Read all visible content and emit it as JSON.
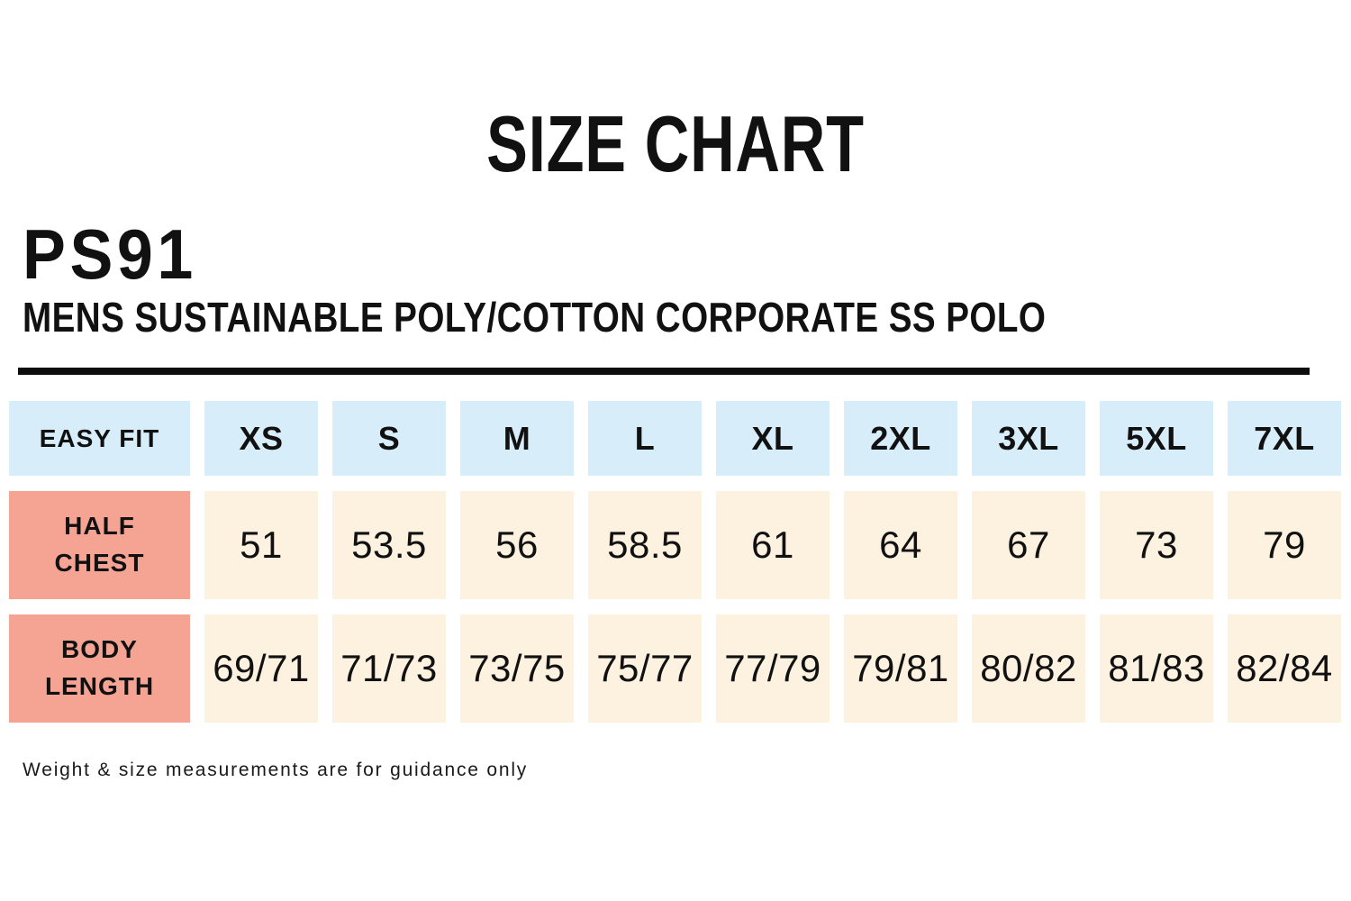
{
  "title": "SIZE CHART",
  "product": {
    "code": "PS91",
    "name": "MENS SUSTAINABLE POLY/COTTON CORPORATE SS POLO"
  },
  "table": {
    "fit_label": "EASY FIT",
    "sizes": [
      "XS",
      "S",
      "M",
      "L",
      "XL",
      "2XL",
      "3XL",
      "5XL",
      "7XL"
    ],
    "rows": [
      {
        "label": "HALF\nCHEST",
        "values": [
          "51",
          "53.5",
          "56",
          "58.5",
          "61",
          "64",
          "67",
          "73",
          "79"
        ]
      },
      {
        "label": "BODY\nLENGTH",
        "values": [
          "69/71",
          "71/73",
          "73/75",
          "75/77",
          "77/79",
          "79/81",
          "80/82",
          "81/83",
          "82/84"
        ]
      }
    ]
  },
  "footer_note": "Weight & size measurements are for guidance only",
  "colors": {
    "header_bg": "#d7edf9",
    "label_bg": "#f5a494",
    "value_bg": "#fdf1e0",
    "rule": "#0d0d0d",
    "text": "#111111"
  }
}
